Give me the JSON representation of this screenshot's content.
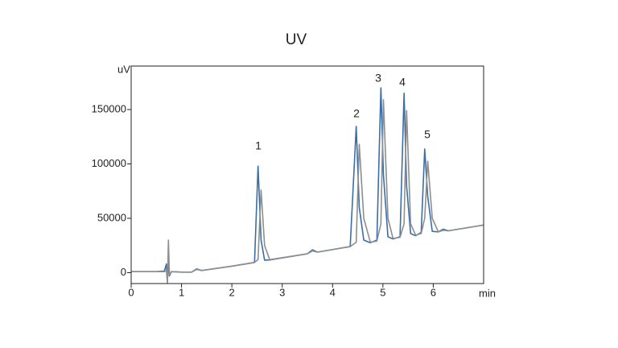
{
  "chart_data": {
    "type": "line",
    "title": "UV",
    "y_label": "uV",
    "x_label": "min",
    "x": [
      0,
      0.5,
      0.66,
      0.7,
      0.72,
      0.74,
      0.76,
      0.8,
      1.0,
      1.2,
      1.3,
      1.4,
      2.0,
      2.45,
      2.52,
      2.58,
      2.65,
      2.75,
      3.5,
      3.6,
      3.7,
      4.35,
      4.47,
      4.53,
      4.62,
      4.75,
      4.88,
      4.96,
      5.01,
      5.1,
      5.2,
      5.34,
      5.42,
      5.47,
      5.55,
      5.65,
      5.76,
      5.83,
      5.89,
      5.98,
      6.1,
      6.2,
      6.3,
      7.0
    ],
    "series": [
      {
        "color": "#3a6ea8",
        "values": [
          1000,
          1000,
          1500,
          8000,
          -8000,
          12000,
          -3000,
          1000,
          500,
          500,
          3500,
          2000,
          6000,
          9400,
          98000,
          30000,
          11500,
          11700,
          17400,
          21000,
          18900,
          24000,
          134500,
          60000,
          30000,
          27500,
          30000,
          170000,
          90000,
          33000,
          31000,
          33000,
          165000,
          80000,
          36000,
          34000,
          37000,
          113700,
          70000,
          38000,
          37500,
          40000,
          38500,
          43800
        ]
      },
      {
        "color": "#8e8e8e",
        "values": [
          1000,
          1000,
          1000,
          2000,
          -10000,
          30000,
          -2000,
          1000,
          500,
          500,
          3000,
          2000,
          6000,
          9400,
          12000,
          76000,
          25000,
          12000,
          17400,
          20000,
          18900,
          24000,
          28000,
          118000,
          50000,
          28000,
          29000,
          45000,
          159000,
          50000,
          31500,
          32500,
          45000,
          149000,
          45000,
          34500,
          36000,
          50000,
          102500,
          50000,
          37500,
          39000,
          38500,
          43800
        ]
      }
    ],
    "xlim": [
      0,
      7
    ],
    "xticks": [
      0,
      1,
      2,
      3,
      4,
      5,
      6
    ],
    "ylim": [
      -10000,
      190000
    ],
    "yticks": [
      0,
      50000,
      100000,
      150000
    ],
    "annotations": [
      "1",
      "2",
      "3",
      "4",
      "5"
    ]
  }
}
